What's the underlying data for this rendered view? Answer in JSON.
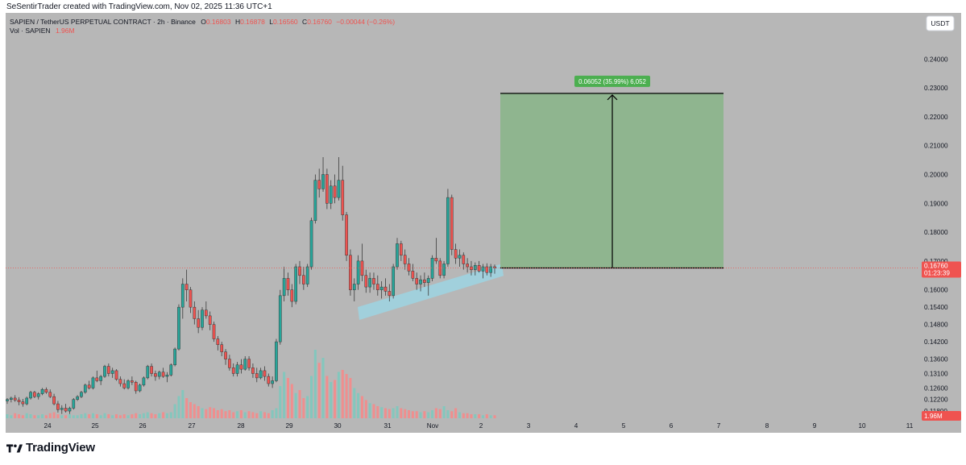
{
  "header": {
    "credit": "SeSentirTrader created with TradingView.com, Nov 02, 2025 11:36 UTC+1"
  },
  "legend": {
    "symbol": "SAPIEN / TetherUS PERPETUAL CONTRACT · 2h · Binance",
    "ohlc": [
      {
        "k": "O",
        "v": "0.16803"
      },
      {
        "k": "H",
        "v": "0.16878"
      },
      {
        "k": "L",
        "v": "0.16560"
      },
      {
        "k": "C",
        "v": "0.16760"
      }
    ],
    "change": "−0.00044 (−0.26%)",
    "vol_label": "Vol · SAPIEN",
    "vol_value": "1.96M"
  },
  "currency_button": "USDT",
  "price_axis": {
    "ticks": [
      "0.24000",
      "0.23000",
      "0.22000",
      "0.21000",
      "0.20000",
      "0.19000",
      "0.18000",
      "0.17000",
      "0.16000",
      "0.15400",
      "0.14800",
      "0.14200",
      "0.13600",
      "0.13100",
      "0.12600",
      "0.12200",
      "0.11800"
    ],
    "last_price": "0.16760",
    "countdown": "01:23:39",
    "volume_tag": "1.96M"
  },
  "time_axis": {
    "ticks": [
      "24",
      "25",
      "26",
      "27",
      "28",
      "29",
      "30",
      "31",
      "Nov",
      "2",
      "3",
      "4",
      "5",
      "6",
      "7",
      "8",
      "9",
      "10",
      "11"
    ]
  },
  "measure": {
    "label": "0.06052 (35.99%) 6,052"
  },
  "colors": {
    "up": "#26a69a",
    "down": "#ef5350",
    "bg": "#b7b7b7",
    "target_box": "#8fb58f",
    "channel": "#9ed3e0"
  },
  "footer": {
    "brand": "TradingView"
  },
  "chart_data": {
    "type": "candlestick",
    "price_range": [
      0.1155,
      0.2465
    ],
    "last_price": 0.1676,
    "candles": [
      [
        0.1215,
        0.1225,
        0.1205,
        0.122
      ],
      [
        0.122,
        0.123,
        0.121,
        0.1225
      ],
      [
        0.1225,
        0.1235,
        0.1212,
        0.1218
      ],
      [
        0.1218,
        0.1228,
        0.12,
        0.1212
      ],
      [
        0.1212,
        0.1222,
        0.1195,
        0.1205
      ],
      [
        0.1205,
        0.123,
        0.12,
        0.1225
      ],
      [
        0.1225,
        0.125,
        0.122,
        0.1245
      ],
      [
        0.1245,
        0.125,
        0.1225,
        0.123
      ],
      [
        0.123,
        0.1245,
        0.122,
        0.124
      ],
      [
        0.124,
        0.126,
        0.1235,
        0.1255
      ],
      [
        0.1255,
        0.1262,
        0.124,
        0.1245
      ],
      [
        0.1245,
        0.1255,
        0.1225,
        0.123
      ],
      [
        0.123,
        0.124,
        0.12,
        0.1205
      ],
      [
        0.1205,
        0.1215,
        0.1175,
        0.1185
      ],
      [
        0.1185,
        0.12,
        0.117,
        0.119
      ],
      [
        0.119,
        0.1205,
        0.1175,
        0.118
      ],
      [
        0.118,
        0.1195,
        0.117,
        0.119
      ],
      [
        0.119,
        0.1225,
        0.1185,
        0.122
      ],
      [
        0.122,
        0.1235,
        0.1215,
        0.123
      ],
      [
        0.123,
        0.125,
        0.1225,
        0.1245
      ],
      [
        0.1245,
        0.1275,
        0.124,
        0.127
      ],
      [
        0.127,
        0.1285,
        0.1255,
        0.126
      ],
      [
        0.126,
        0.13,
        0.1255,
        0.1295
      ],
      [
        0.1295,
        0.132,
        0.128,
        0.1285
      ],
      [
        0.1285,
        0.1305,
        0.127,
        0.13
      ],
      [
        0.13,
        0.134,
        0.1295,
        0.1335
      ],
      [
        0.1335,
        0.1345,
        0.13,
        0.131
      ],
      [
        0.131,
        0.133,
        0.1295,
        0.132
      ],
      [
        0.132,
        0.1325,
        0.1285,
        0.129
      ],
      [
        0.129,
        0.13,
        0.1265,
        0.1275
      ],
      [
        0.1275,
        0.129,
        0.1255,
        0.126
      ],
      [
        0.126,
        0.129,
        0.1255,
        0.1285
      ],
      [
        0.1285,
        0.13,
        0.127,
        0.128
      ],
      [
        0.128,
        0.1285,
        0.124,
        0.125
      ],
      [
        0.125,
        0.1275,
        0.1245,
        0.127
      ],
      [
        0.127,
        0.13,
        0.1265,
        0.1295
      ],
      [
        0.1295,
        0.134,
        0.129,
        0.1335
      ],
      [
        0.1335,
        0.1345,
        0.13,
        0.131
      ],
      [
        0.131,
        0.132,
        0.1285,
        0.13
      ],
      [
        0.13,
        0.132,
        0.129,
        0.1315
      ],
      [
        0.1315,
        0.133,
        0.1295,
        0.13
      ],
      [
        0.13,
        0.1315,
        0.128,
        0.1305
      ],
      [
        0.1305,
        0.1345,
        0.13,
        0.134
      ],
      [
        0.134,
        0.14,
        0.1335,
        0.1395
      ],
      [
        0.1395,
        0.155,
        0.139,
        0.154
      ],
      [
        0.154,
        0.164,
        0.15,
        0.162
      ],
      [
        0.162,
        0.167,
        0.156,
        0.16
      ],
      [
        0.16,
        0.161,
        0.152,
        0.154
      ],
      [
        0.154,
        0.156,
        0.148,
        0.15
      ],
      [
        0.15,
        0.153,
        0.145,
        0.147
      ],
      [
        0.147,
        0.154,
        0.146,
        0.153
      ],
      [
        0.153,
        0.156,
        0.15,
        0.151
      ],
      [
        0.151,
        0.1525,
        0.146,
        0.148
      ],
      [
        0.148,
        0.149,
        0.142,
        0.143
      ],
      [
        0.143,
        0.144,
        0.139,
        0.141
      ],
      [
        0.141,
        0.142,
        0.137,
        0.1385
      ],
      [
        0.1385,
        0.1395,
        0.134,
        0.136
      ],
      [
        0.136,
        0.1375,
        0.132,
        0.133
      ],
      [
        0.133,
        0.1345,
        0.13,
        0.131
      ],
      [
        0.131,
        0.135,
        0.13,
        0.134
      ],
      [
        0.134,
        0.136,
        0.131,
        0.1325
      ],
      [
        0.1325,
        0.137,
        0.132,
        0.136
      ],
      [
        0.136,
        0.137,
        0.132,
        0.133
      ],
      [
        0.133,
        0.1345,
        0.1295,
        0.131
      ],
      [
        0.131,
        0.133,
        0.128,
        0.1295
      ],
      [
        0.1295,
        0.133,
        0.129,
        0.132
      ],
      [
        0.132,
        0.1335,
        0.1285,
        0.13
      ],
      [
        0.13,
        0.131,
        0.1265,
        0.1275
      ],
      [
        0.1275,
        0.13,
        0.126,
        0.1285
      ],
      [
        0.1285,
        0.143,
        0.128,
        0.142
      ],
      [
        0.142,
        0.16,
        0.141,
        0.158
      ],
      [
        0.158,
        0.168,
        0.156,
        0.164
      ],
      [
        0.164,
        0.166,
        0.158,
        0.16
      ],
      [
        0.16,
        0.162,
        0.154,
        0.156
      ],
      [
        0.156,
        0.169,
        0.155,
        0.168
      ],
      [
        0.168,
        0.17,
        0.162,
        0.165
      ],
      [
        0.165,
        0.168,
        0.16,
        0.162
      ],
      [
        0.162,
        0.169,
        0.161,
        0.168
      ],
      [
        0.168,
        0.185,
        0.167,
        0.184
      ],
      [
        0.184,
        0.2,
        0.183,
        0.198
      ],
      [
        0.198,
        0.202,
        0.192,
        0.195
      ],
      [
        0.195,
        0.206,
        0.194,
        0.2
      ],
      [
        0.2,
        0.202,
        0.188,
        0.19
      ],
      [
        0.19,
        0.198,
        0.188,
        0.196
      ],
      [
        0.196,
        0.2,
        0.19,
        0.192
      ],
      [
        0.192,
        0.206,
        0.191,
        0.198
      ],
      [
        0.198,
        0.203,
        0.184,
        0.186
      ],
      [
        0.186,
        0.187,
        0.17,
        0.172
      ],
      [
        0.172,
        0.174,
        0.158,
        0.16
      ],
      [
        0.16,
        0.164,
        0.156,
        0.162
      ],
      [
        0.162,
        0.172,
        0.16,
        0.17
      ],
      [
        0.17,
        0.176,
        0.163,
        0.165
      ],
      [
        0.165,
        0.167,
        0.159,
        0.161
      ],
      [
        0.161,
        0.166,
        0.159,
        0.164
      ],
      [
        0.164,
        0.166,
        0.16,
        0.162
      ],
      [
        0.162,
        0.165,
        0.158,
        0.16
      ],
      [
        0.16,
        0.163,
        0.157,
        0.161
      ],
      [
        0.161,
        0.164,
        0.158,
        0.1595
      ],
      [
        0.1595,
        0.162,
        0.156,
        0.158
      ],
      [
        0.158,
        0.169,
        0.157,
        0.168
      ],
      [
        0.168,
        0.178,
        0.167,
        0.176
      ],
      [
        0.176,
        0.177,
        0.17,
        0.172
      ],
      [
        0.172,
        0.174,
        0.167,
        0.169
      ],
      [
        0.169,
        0.171,
        0.165,
        0.1665
      ],
      [
        0.1665,
        0.169,
        0.163,
        0.164
      ],
      [
        0.164,
        0.166,
        0.16,
        0.162
      ],
      [
        0.162,
        0.165,
        0.1595,
        0.1635
      ],
      [
        0.1635,
        0.166,
        0.161,
        0.1625
      ],
      [
        0.1625,
        0.165,
        0.158,
        0.164
      ],
      [
        0.164,
        0.172,
        0.163,
        0.171
      ],
      [
        0.171,
        0.178,
        0.169,
        0.17
      ],
      [
        0.17,
        0.171,
        0.164,
        0.165
      ],
      [
        0.165,
        0.17,
        0.164,
        0.169
      ],
      [
        0.169,
        0.195,
        0.168,
        0.192
      ],
      [
        0.192,
        0.193,
        0.172,
        0.174
      ],
      [
        0.174,
        0.176,
        0.169,
        0.171
      ],
      [
        0.171,
        0.174,
        0.168,
        0.172
      ],
      [
        0.172,
        0.173,
        0.167,
        0.169
      ],
      [
        0.169,
        0.171,
        0.166,
        0.168
      ],
      [
        0.168,
        0.17,
        0.165,
        0.167
      ],
      [
        0.167,
        0.1695,
        0.165,
        0.1685
      ],
      [
        0.1685,
        0.17,
        0.166,
        0.1665
      ],
      [
        0.1665,
        0.169,
        0.164,
        0.168
      ],
      [
        0.168,
        0.1692,
        0.165,
        0.166
      ],
      [
        0.166,
        0.169,
        0.1645,
        0.168
      ],
      [
        0.16803,
        0.16878,
        0.1656,
        0.1676
      ]
    ],
    "volume_scale_max": 1.0,
    "volumes": [
      0.04,
      0.03,
      0.05,
      0.04,
      0.03,
      0.05,
      0.04,
      0.03,
      0.03,
      0.04,
      0.03,
      0.05,
      0.06,
      0.04,
      0.03,
      0.03,
      0.04,
      0.03,
      0.03,
      0.04,
      0.05,
      0.04,
      0.05,
      0.04,
      0.03,
      0.05,
      0.04,
      0.03,
      0.04,
      0.03,
      0.04,
      0.03,
      0.04,
      0.05,
      0.04,
      0.05,
      0.06,
      0.05,
      0.04,
      0.05,
      0.06,
      0.05,
      0.06,
      0.14,
      0.22,
      0.28,
      0.2,
      0.16,
      0.14,
      0.12,
      0.1,
      0.09,
      0.11,
      0.1,
      0.08,
      0.09,
      0.07,
      0.08,
      0.06,
      0.07,
      0.08,
      0.06,
      0.07,
      0.06,
      0.05,
      0.07,
      0.06,
      0.05,
      0.08,
      0.1,
      0.32,
      0.46,
      0.4,
      0.34,
      0.25,
      0.28,
      0.2,
      0.22,
      0.42,
      0.68,
      0.55,
      0.6,
      0.42,
      0.36,
      0.38,
      0.46,
      0.48,
      0.44,
      0.4,
      0.3,
      0.25,
      0.22,
      0.18,
      0.15,
      0.14,
      0.12,
      0.11,
      0.1,
      0.09,
      0.1,
      0.12,
      0.1,
      0.09,
      0.08,
      0.07,
      0.07,
      0.06,
      0.07,
      0.06,
      0.08,
      0.1,
      0.09,
      0.12,
      0.08,
      0.07,
      0.1,
      0.06,
      0.05,
      0.05,
      0.04,
      0.04,
      0.04,
      0.03,
      0.04,
      0.03,
      0.03
    ],
    "annotations": {
      "target_box": {
        "entry_price": 0.1676,
        "target_price": 0.2281,
        "start_time": "Nov 2",
        "end_time": "Nov 7"
      },
      "support_channel": {
        "from": {
          "time": "Oct 30",
          "price": 0.1535
        },
        "to": {
          "time": "Nov 2",
          "price": 0.1685
        }
      }
    }
  }
}
